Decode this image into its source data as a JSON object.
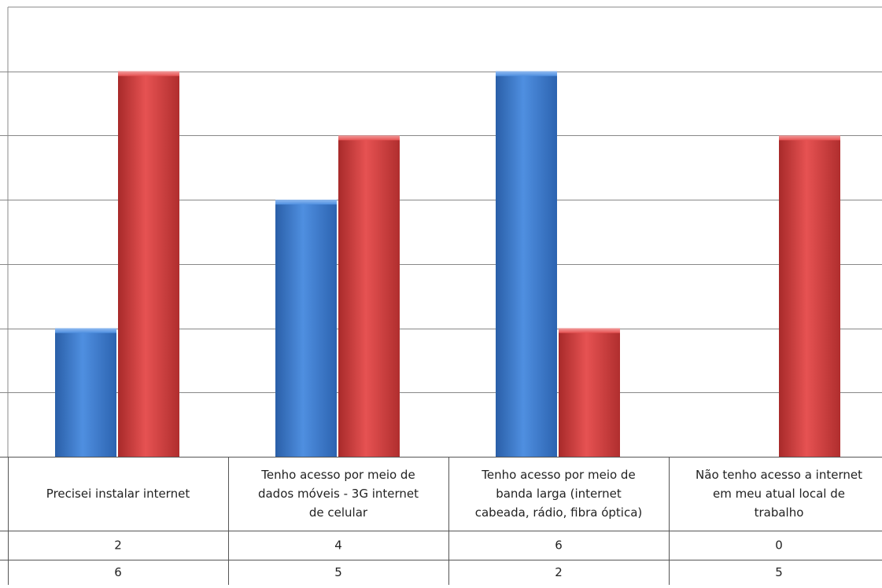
{
  "chart_data": {
    "type": "bar",
    "categories": [
      [
        "Precisei instalar internet"
      ],
      [
        "Tenho acesso por meio de",
        "dados móveis - 3G internet",
        "de celular"
      ],
      [
        "Tenho acesso por meio de",
        "banda larga (internet",
        "cabeada, rádio, fibra óptica)"
      ],
      [
        "Não tenho acesso a internet",
        "em meu atual local de",
        "trabalho"
      ]
    ],
    "series": [
      {
        "values": [
          2,
          4,
          6,
          0
        ],
        "color": "#3d7bd0"
      },
      {
        "values": [
          6,
          5,
          2,
          5
        ],
        "color": "#d63d3d"
      }
    ],
    "ylim": [
      0,
      7
    ],
    "grid": true,
    "data_table": true
  }
}
